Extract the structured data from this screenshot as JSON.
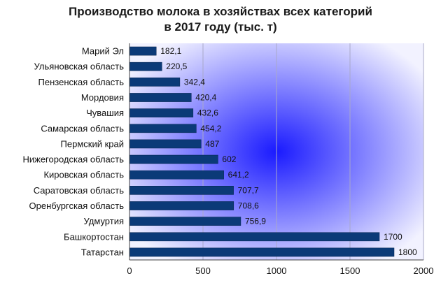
{
  "chart_data": {
    "type": "bar",
    "orientation": "horizontal",
    "title_lines": [
      "Производство молока в хозяйствах всех категорий",
      "в 2017 году (тыс. т)"
    ],
    "categories": [
      "Марий Эл",
      "Ульяновская область",
      "Пензенская область",
      "Мордовия",
      "Чувашия",
      "Самарская область",
      "Пермский край",
      "Нижегородская область",
      "Кировская область",
      "Саратовская область",
      "Оренбургская область",
      "Удмуртия",
      "Башкортостан",
      "Татарстан"
    ],
    "values": [
      182.1,
      220.5,
      342.4,
      420.4,
      432.6,
      454.2,
      487,
      602,
      641.2,
      707.7,
      708.6,
      756.9,
      1700,
      1800
    ],
    "value_labels": [
      "182,1",
      "220,5",
      "342,4",
      "420,4",
      "432,6",
      "454,2",
      "487",
      "602",
      "641,2",
      "707,7",
      "708,6",
      "756,9",
      "1700",
      "1800"
    ],
    "xlim": [
      0,
      2000
    ],
    "xticks": [
      0,
      500,
      1000,
      1500,
      2000
    ],
    "grid": "vertical",
    "legend": "none",
    "colors": {
      "bar": "#0b3a78",
      "bar_edge": "#06244f",
      "plot_center": "#1a1aff",
      "plot_edge": "#f2f2ff",
      "gridline": "#a8a8c8",
      "axis": "#404040"
    }
  }
}
